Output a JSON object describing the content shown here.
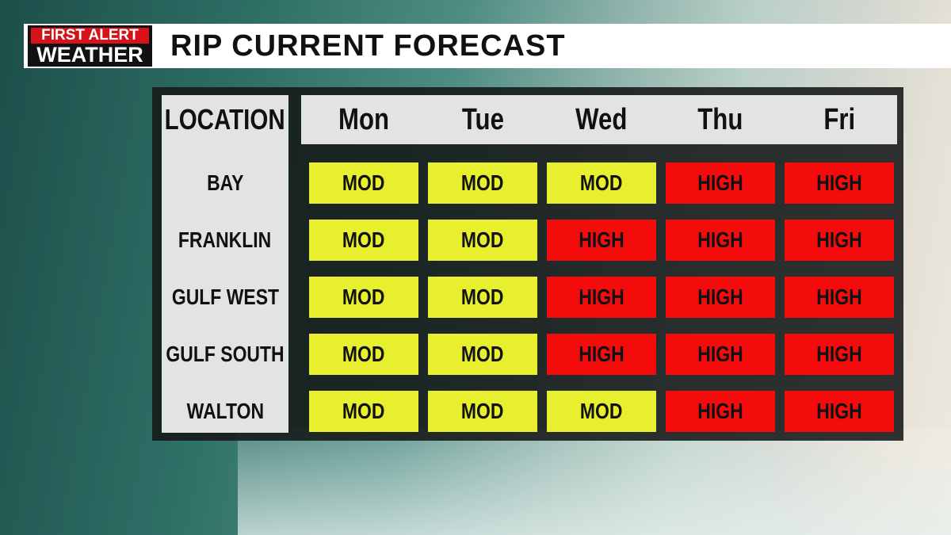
{
  "logo": {
    "line1": "FIRST ALERT",
    "line2": "WEATHER"
  },
  "title": "RIP CURRENT FORECAST",
  "table": {
    "header": [
      "LOCATION",
      "Mon",
      "Tue",
      "Wed",
      "Thu",
      "Fri"
    ],
    "rows": [
      [
        "BAY",
        "MOD",
        "MOD",
        "MOD",
        "HIGH",
        "HIGH"
      ],
      [
        "FRANKLIN",
        "MOD",
        "MOD",
        "HIGH",
        "HIGH",
        "HIGH"
      ],
      [
        "GULF WEST",
        "MOD",
        "MOD",
        "HIGH",
        "HIGH",
        "HIGH"
      ],
      [
        "GULF SOUTH",
        "MOD",
        "MOD",
        "HIGH",
        "HIGH",
        "HIGH"
      ],
      [
        "WALTON",
        "MOD",
        "MOD",
        "MOD",
        "HIGH",
        "HIGH"
      ]
    ],
    "level_colors": {
      "MOD": "#e8ef2f",
      "HIGH": "#f40b0b"
    }
  }
}
